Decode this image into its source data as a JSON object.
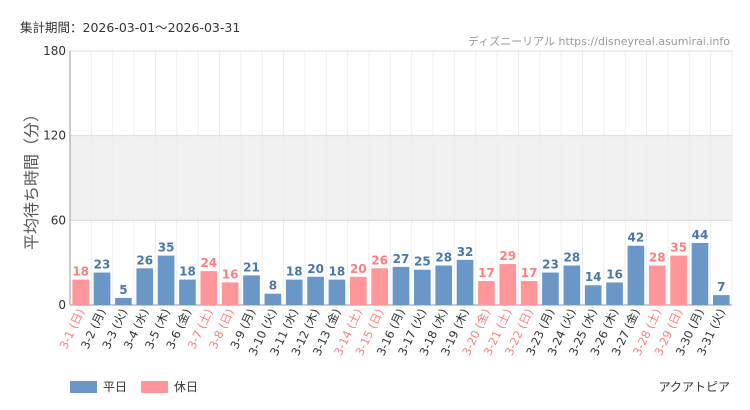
{
  "header": {
    "period": "集計期間：2026-03-01～2026-03-31",
    "site": "ディズニーリアル https://disneyreal.asumirai.info"
  },
  "park_name": "アクアトピア",
  "colors": {
    "weekday": "#6a97c8",
    "holiday": "#ff969a",
    "holiday_label": "#ff7f7f",
    "weekday_label": "#333333",
    "band": "#f1f1f1"
  },
  "legend": {
    "weekday": "平日",
    "holiday": "休日"
  },
  "chart_data": {
    "type": "bar",
    "ylabel": "平均待ち時間（分）",
    "ylim": [
      0,
      180
    ],
    "yticks": [
      0,
      60,
      120,
      180
    ],
    "grid": true,
    "legend_position": "bottom-left",
    "categories": [
      "3-1 (日)",
      "3-2 (月)",
      "3-3 (火)",
      "3-4 (水)",
      "3-5 (木)",
      "3-6 (金)",
      "3-7 (土)",
      "3-8 (日)",
      "3-9 (月)",
      "3-10 (火)",
      "3-11 (水)",
      "3-12 (木)",
      "3-13 (金)",
      "3-14 (土)",
      "3-15 (日)",
      "3-16 (月)",
      "3-17 (火)",
      "3-18 (水)",
      "3-19 (木)",
      "3-20 (金)",
      "3-21 (土)",
      "3-22 (日)",
      "3-23 (月)",
      "3-24 (火)",
      "3-25 (水)",
      "3-26 (木)",
      "3-27 (金)",
      "3-28 (土)",
      "3-29 (日)",
      "3-30 (月)",
      "3-31 (火)"
    ],
    "values": [
      18,
      23,
      5,
      26,
      35,
      18,
      24,
      16,
      21,
      8,
      18,
      20,
      18,
      20,
      26,
      27,
      25,
      28,
      32,
      17,
      29,
      17,
      23,
      28,
      14,
      16,
      42,
      28,
      35,
      44,
      7
    ],
    "day_type": [
      "休日",
      "平日",
      "平日",
      "平日",
      "平日",
      "平日",
      "休日",
      "休日",
      "平日",
      "平日",
      "平日",
      "平日",
      "平日",
      "休日",
      "休日",
      "平日",
      "平日",
      "平日",
      "平日",
      "休日",
      "休日",
      "休日",
      "平日",
      "平日",
      "平日",
      "平日",
      "平日",
      "休日",
      "休日",
      "平日",
      "平日"
    ]
  }
}
